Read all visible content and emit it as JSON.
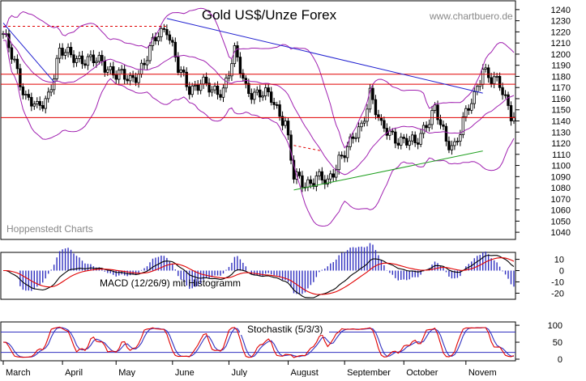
{
  "chart_data": [
    {
      "type": "candlestick",
      "title": "Gold US$/Unze Forex",
      "watermark": "www.chartbuero.de",
      "source_label": "Hoppenstedt Charts",
      "y_ticks": [
        1040,
        1050,
        1060,
        1070,
        1080,
        1090,
        1100,
        1110,
        1120,
        1130,
        1140,
        1150,
        1160,
        1170,
        1180,
        1190,
        1200,
        1210,
        1220,
        1230,
        1240
      ],
      "ylim": [
        1035,
        1245
      ],
      "x_ticks": [
        "March",
        "April",
        "May",
        "June",
        "July",
        "August",
        "September",
        "October",
        "Novem"
      ],
      "close_anchors": [
        [
          0,
          1215
        ],
        [
          4,
          1195
        ],
        [
          8,
          1160
        ],
        [
          12,
          1150
        ],
        [
          16,
          1165
        ],
        [
          20,
          1200
        ],
        [
          25,
          1200
        ],
        [
          30,
          1192
        ],
        [
          35,
          1195
        ],
        [
          40,
          1180
        ],
        [
          45,
          1178
        ],
        [
          50,
          1190
        ],
        [
          55,
          1220
        ],
        [
          58,
          1225
        ],
        [
          62,
          1185
        ],
        [
          66,
          1170
        ],
        [
          70,
          1175
        ],
        [
          74,
          1165
        ],
        [
          78,
          1170
        ],
        [
          82,
          1200
        ],
        [
          86,
          1170
        ],
        [
          90,
          1165
        ],
        [
          95,
          1160
        ],
        [
          100,
          1140
        ],
        [
          103,
          1088
        ],
        [
          107,
          1084
        ],
        [
          111,
          1090
        ],
        [
          115,
          1082
        ],
        [
          119,
          1108
        ],
        [
          123,
          1118
        ],
        [
          127,
          1135
        ],
        [
          130,
          1168
        ],
        [
          134,
          1132
        ],
        [
          138,
          1128
        ],
        [
          142,
          1122
        ],
        [
          146,
          1118
        ],
        [
          150,
          1140
        ],
        [
          153,
          1150
        ],
        [
          157,
          1120
        ],
        [
          160,
          1120
        ],
        [
          163,
          1140
        ],
        [
          167,
          1160
        ],
        [
          170,
          1190
        ],
        [
          173,
          1178
        ],
        [
          176,
          1170
        ],
        [
          180,
          1148
        ]
      ],
      "horizontal_lines": [
        1182,
        1173,
        1143
      ],
      "dashed_lines": [
        {
          "from": [
            0,
            1225
          ],
          "to": [
            58,
            1225
          ]
        },
        {
          "from": [
            103,
            1118
          ],
          "to": [
            113,
            1113
          ]
        }
      ],
      "trend_lines": [
        {
          "name": "downtrend",
          "color": "#2020d0",
          "from": [
            58,
            1232
          ],
          "to": [
            170,
            1165
          ]
        },
        {
          "name": "early-downtrend",
          "color": "#2020d0",
          "from": [
            0,
            1228
          ],
          "to": [
            18,
            1175
          ]
        },
        {
          "name": "uptrend",
          "color": "#20a020",
          "from": [
            103,
            1078
          ],
          "to": [
            170,
            1113
          ]
        }
      ],
      "bollinger": {
        "period": 20,
        "width": 2
      },
      "colors": {
        "candle": "#000000",
        "bands": "#a020b0",
        "hline": "#e00000"
      }
    },
    {
      "type": "macd",
      "label": "MACD (12/26/9) mit Histogramm",
      "y_ticks": [
        10,
        0,
        -10,
        -20
      ],
      "ylim": [
        -24,
        14
      ],
      "colors": {
        "macd": "#000000",
        "signal": "#e00000",
        "histogram": "#3030c0"
      }
    },
    {
      "type": "stochastic",
      "label": "Stochastik (5/3/3)",
      "y_ticks": [
        100,
        50,
        0
      ],
      "ylim": [
        0,
        105
      ],
      "levels": [
        80,
        20
      ],
      "colors": {
        "k": "#e00000",
        "d": "#3030c0",
        "levels": "#3030c0"
      }
    }
  ]
}
